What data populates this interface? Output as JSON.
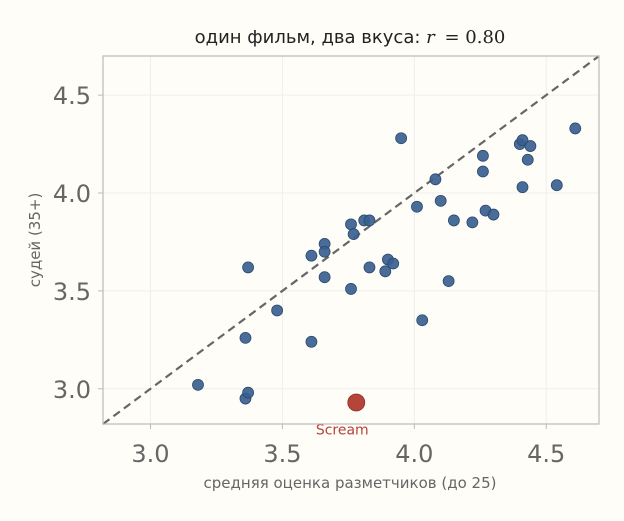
{
  "chart_data": {
    "type": "scatter",
    "title_text": "один фильм, два вкуса: ",
    "title_r_symbol": "r",
    "title_r_value": "= 0.80",
    "xlabel": "средняя оценка разметчиков (до 25)",
    "ylabel": "судей (35+)",
    "xlim": [
      2.82,
      4.7
    ],
    "ylim": [
      2.82,
      4.7
    ],
    "xticks": [
      3.0,
      3.5,
      4.0,
      4.5
    ],
    "yticks": [
      3.0,
      3.5,
      4.0,
      4.5
    ],
    "xtick_labels": [
      "3.0",
      "3.5",
      "4.0",
      "4.5"
    ],
    "ytick_labels": [
      "3.0",
      "3.5",
      "4.0",
      "4.5"
    ],
    "grid": true,
    "reference_line": "y = x",
    "colors": {
      "points": "#3a5f8f",
      "highlight": "#b5443a",
      "reference": "#666666",
      "axes": "#bbbbbb",
      "grid": "#eeeeee",
      "text": "#666666"
    },
    "points": [
      {
        "x": 3.18,
        "y": 3.02
      },
      {
        "x": 3.36,
        "y": 2.95
      },
      {
        "x": 3.37,
        "y": 2.98
      },
      {
        "x": 3.36,
        "y": 3.26
      },
      {
        "x": 3.37,
        "y": 3.62
      },
      {
        "x": 3.48,
        "y": 3.4
      },
      {
        "x": 3.61,
        "y": 3.24
      },
      {
        "x": 3.61,
        "y": 3.68
      },
      {
        "x": 3.66,
        "y": 3.74
      },
      {
        "x": 3.66,
        "y": 3.7
      },
      {
        "x": 3.66,
        "y": 3.57
      },
      {
        "x": 3.76,
        "y": 3.51
      },
      {
        "x": 3.76,
        "y": 3.84
      },
      {
        "x": 3.77,
        "y": 3.79
      },
      {
        "x": 3.81,
        "y": 3.86
      },
      {
        "x": 3.83,
        "y": 3.86
      },
      {
        "x": 3.83,
        "y": 3.62
      },
      {
        "x": 3.89,
        "y": 3.6
      },
      {
        "x": 3.9,
        "y": 3.66
      },
      {
        "x": 3.92,
        "y": 3.64
      },
      {
        "x": 3.95,
        "y": 4.28
      },
      {
        "x": 4.01,
        "y": 3.93
      },
      {
        "x": 4.03,
        "y": 3.35
      },
      {
        "x": 4.08,
        "y": 4.07
      },
      {
        "x": 4.1,
        "y": 3.96
      },
      {
        "x": 4.13,
        "y": 3.55
      },
      {
        "x": 4.15,
        "y": 3.86
      },
      {
        "x": 4.22,
        "y": 3.85
      },
      {
        "x": 4.26,
        "y": 4.19
      },
      {
        "x": 4.26,
        "y": 4.11
      },
      {
        "x": 4.27,
        "y": 3.91
      },
      {
        "x": 4.3,
        "y": 3.89
      },
      {
        "x": 4.4,
        "y": 4.25
      },
      {
        "x": 4.41,
        "y": 4.27
      },
      {
        "x": 4.41,
        "y": 4.03
      },
      {
        "x": 4.43,
        "y": 4.17
      },
      {
        "x": 4.44,
        "y": 4.24
      },
      {
        "x": 4.54,
        "y": 4.04
      },
      {
        "x": 4.61,
        "y": 4.33
      }
    ],
    "highlight": {
      "x": 3.78,
      "y": 2.93,
      "label": "Scream"
    }
  }
}
